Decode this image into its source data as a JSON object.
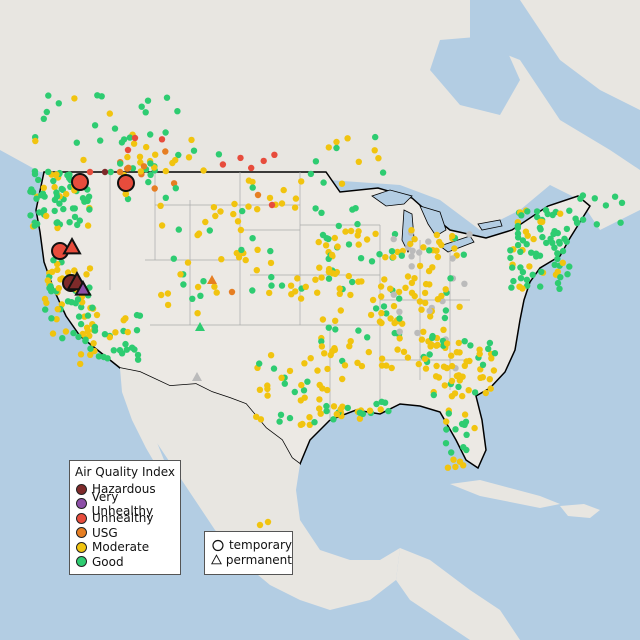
{
  "colors": {
    "water": "#b3cde3",
    "land": "#e8e6e1",
    "us_land": "#ece9e4",
    "mountain": "#d9d4cb",
    "state_line": "#aaaaaa",
    "border": "#000000",
    "Hazardous": "#7e2a2a",
    "Very Unhealthy": "#8d4fa8",
    "Unhealthy": "#e74c3c",
    "USG": "#e67e22",
    "Moderate": "#f1c40f",
    "Good": "#2ecc71",
    "NoData": "#bbbbbb"
  },
  "legend": {
    "title": "Air Quality Index",
    "items": [
      {
        "label": "Hazardous",
        "color": "#7e2a2a"
      },
      {
        "label": "Very Unhealthy",
        "color": "#8d4fa8"
      },
      {
        "label": "Unhealthy",
        "color": "#e74c3c"
      },
      {
        "label": "USG",
        "color": "#e67e22"
      },
      {
        "label": "Moderate",
        "color": "#f1c40f"
      },
      {
        "label": "Good",
        "color": "#2ecc71"
      }
    ]
  },
  "type_legend": {
    "temporary_label": "temporary",
    "permanent_label": "permanent"
  }
}
